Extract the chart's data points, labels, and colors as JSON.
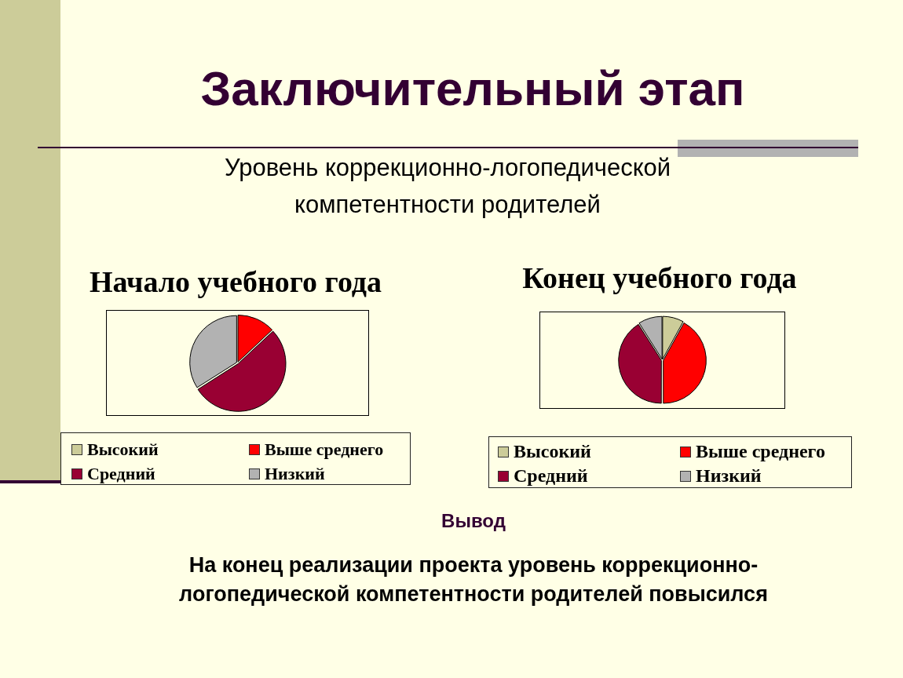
{
  "chart_data": [
    {
      "type": "other",
      "title": "Заключительный этап",
      "subtitle": "Уровень коррекционно-логопедической компетентности родителей"
    },
    {
      "type": "pie",
      "title": "Начало учебного года",
      "categories": [
        "Высокий",
        "Выше среднего",
        "Средний",
        "Низкий"
      ],
      "values": [
        0,
        13,
        53,
        34
      ],
      "colors": [
        "#cccc99",
        "#ff0000",
        "#990033",
        "#b2b2b2"
      ],
      "legend": "bottom"
    },
    {
      "type": "pie",
      "title": "Конец учебного года",
      "categories": [
        "Высокий",
        "Выше среднего",
        "Средний",
        "Низкий"
      ],
      "values": [
        8,
        42,
        41,
        9
      ],
      "colors": [
        "#cccc99",
        "#ff0000",
        "#990033",
        "#b2b2b2"
      ],
      "legend": "bottom"
    },
    {
      "type": "other",
      "title": "Вывод",
      "annotations": [
        "На конец реализации проекта уровень коррекционно-логопедической компетентности родителей повысился"
      ]
    }
  ]
}
